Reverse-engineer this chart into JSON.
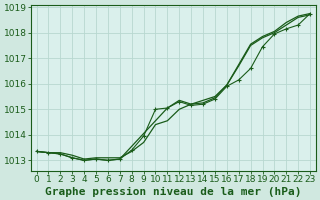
{
  "bg_color": "#d0e8e0",
  "plot_bg": "#daf0ec",
  "grid_color": "#b8d8d0",
  "line_color": "#1a5c1a",
  "title": "Graphe pression niveau de la mer (hPa)",
  "xlim": [
    -0.5,
    23.5
  ],
  "ylim": [
    1012.6,
    1019.1
  ],
  "yticks": [
    1013,
    1014,
    1015,
    1016,
    1017,
    1018,
    1019
  ],
  "xticks": [
    0,
    1,
    2,
    3,
    4,
    5,
    6,
    7,
    8,
    9,
    10,
    11,
    12,
    13,
    14,
    15,
    16,
    17,
    18,
    19,
    20,
    21,
    22,
    23
  ],
  "line1": [
    [
      0,
      1013.35
    ],
    [
      1,
      1013.3
    ],
    [
      2,
      1013.3
    ],
    [
      3,
      1013.2
    ],
    [
      4,
      1013.05
    ],
    [
      5,
      1013.1
    ],
    [
      6,
      1013.1
    ],
    [
      7,
      1013.1
    ],
    [
      8,
      1013.35
    ],
    [
      9,
      1013.7
    ],
    [
      10,
      1014.4
    ],
    [
      11,
      1014.55
    ],
    [
      12,
      1015.0
    ],
    [
      13,
      1015.2
    ],
    [
      14,
      1015.35
    ],
    [
      15,
      1015.5
    ],
    [
      16,
      1015.95
    ],
    [
      17,
      1016.75
    ],
    [
      18,
      1017.55
    ],
    [
      19,
      1017.85
    ],
    [
      20,
      1018.05
    ],
    [
      21,
      1018.4
    ],
    [
      22,
      1018.65
    ],
    [
      23,
      1018.75
    ]
  ],
  "line2": [
    [
      0,
      1013.35
    ],
    [
      1,
      1013.3
    ],
    [
      2,
      1013.25
    ],
    [
      3,
      1013.1
    ],
    [
      4,
      1013.0
    ],
    [
      5,
      1013.05
    ],
    [
      6,
      1013.0
    ],
    [
      7,
      1013.05
    ],
    [
      8,
      1013.55
    ],
    [
      9,
      1014.05
    ],
    [
      10,
      1014.55
    ],
    [
      11,
      1015.05
    ],
    [
      12,
      1015.35
    ],
    [
      13,
      1015.2
    ],
    [
      14,
      1015.25
    ],
    [
      15,
      1015.45
    ],
    [
      16,
      1015.95
    ],
    [
      17,
      1016.7
    ],
    [
      18,
      1017.5
    ],
    [
      19,
      1017.8
    ],
    [
      20,
      1018.0
    ],
    [
      21,
      1018.3
    ],
    [
      22,
      1018.6
    ],
    [
      23,
      1018.7
    ]
  ],
  "line3_markers": [
    [
      0,
      1013.35
    ],
    [
      1,
      1013.3
    ],
    [
      2,
      1013.25
    ],
    [
      3,
      1013.1
    ],
    [
      4,
      1013.0
    ],
    [
      5,
      1013.05
    ],
    [
      6,
      1013.0
    ],
    [
      7,
      1013.05
    ],
    [
      8,
      1013.4
    ],
    [
      9,
      1013.95
    ],
    [
      10,
      1015.0
    ],
    [
      11,
      1015.05
    ],
    [
      12,
      1015.3
    ],
    [
      13,
      1015.15
    ],
    [
      14,
      1015.2
    ],
    [
      15,
      1015.4
    ],
    [
      16,
      1015.9
    ],
    [
      17,
      1016.15
    ],
    [
      18,
      1016.6
    ],
    [
      19,
      1017.45
    ],
    [
      20,
      1017.95
    ],
    [
      21,
      1018.15
    ],
    [
      22,
      1018.3
    ],
    [
      23,
      1018.75
    ]
  ],
  "title_fontsize": 8,
  "tick_fontsize": 6.5
}
